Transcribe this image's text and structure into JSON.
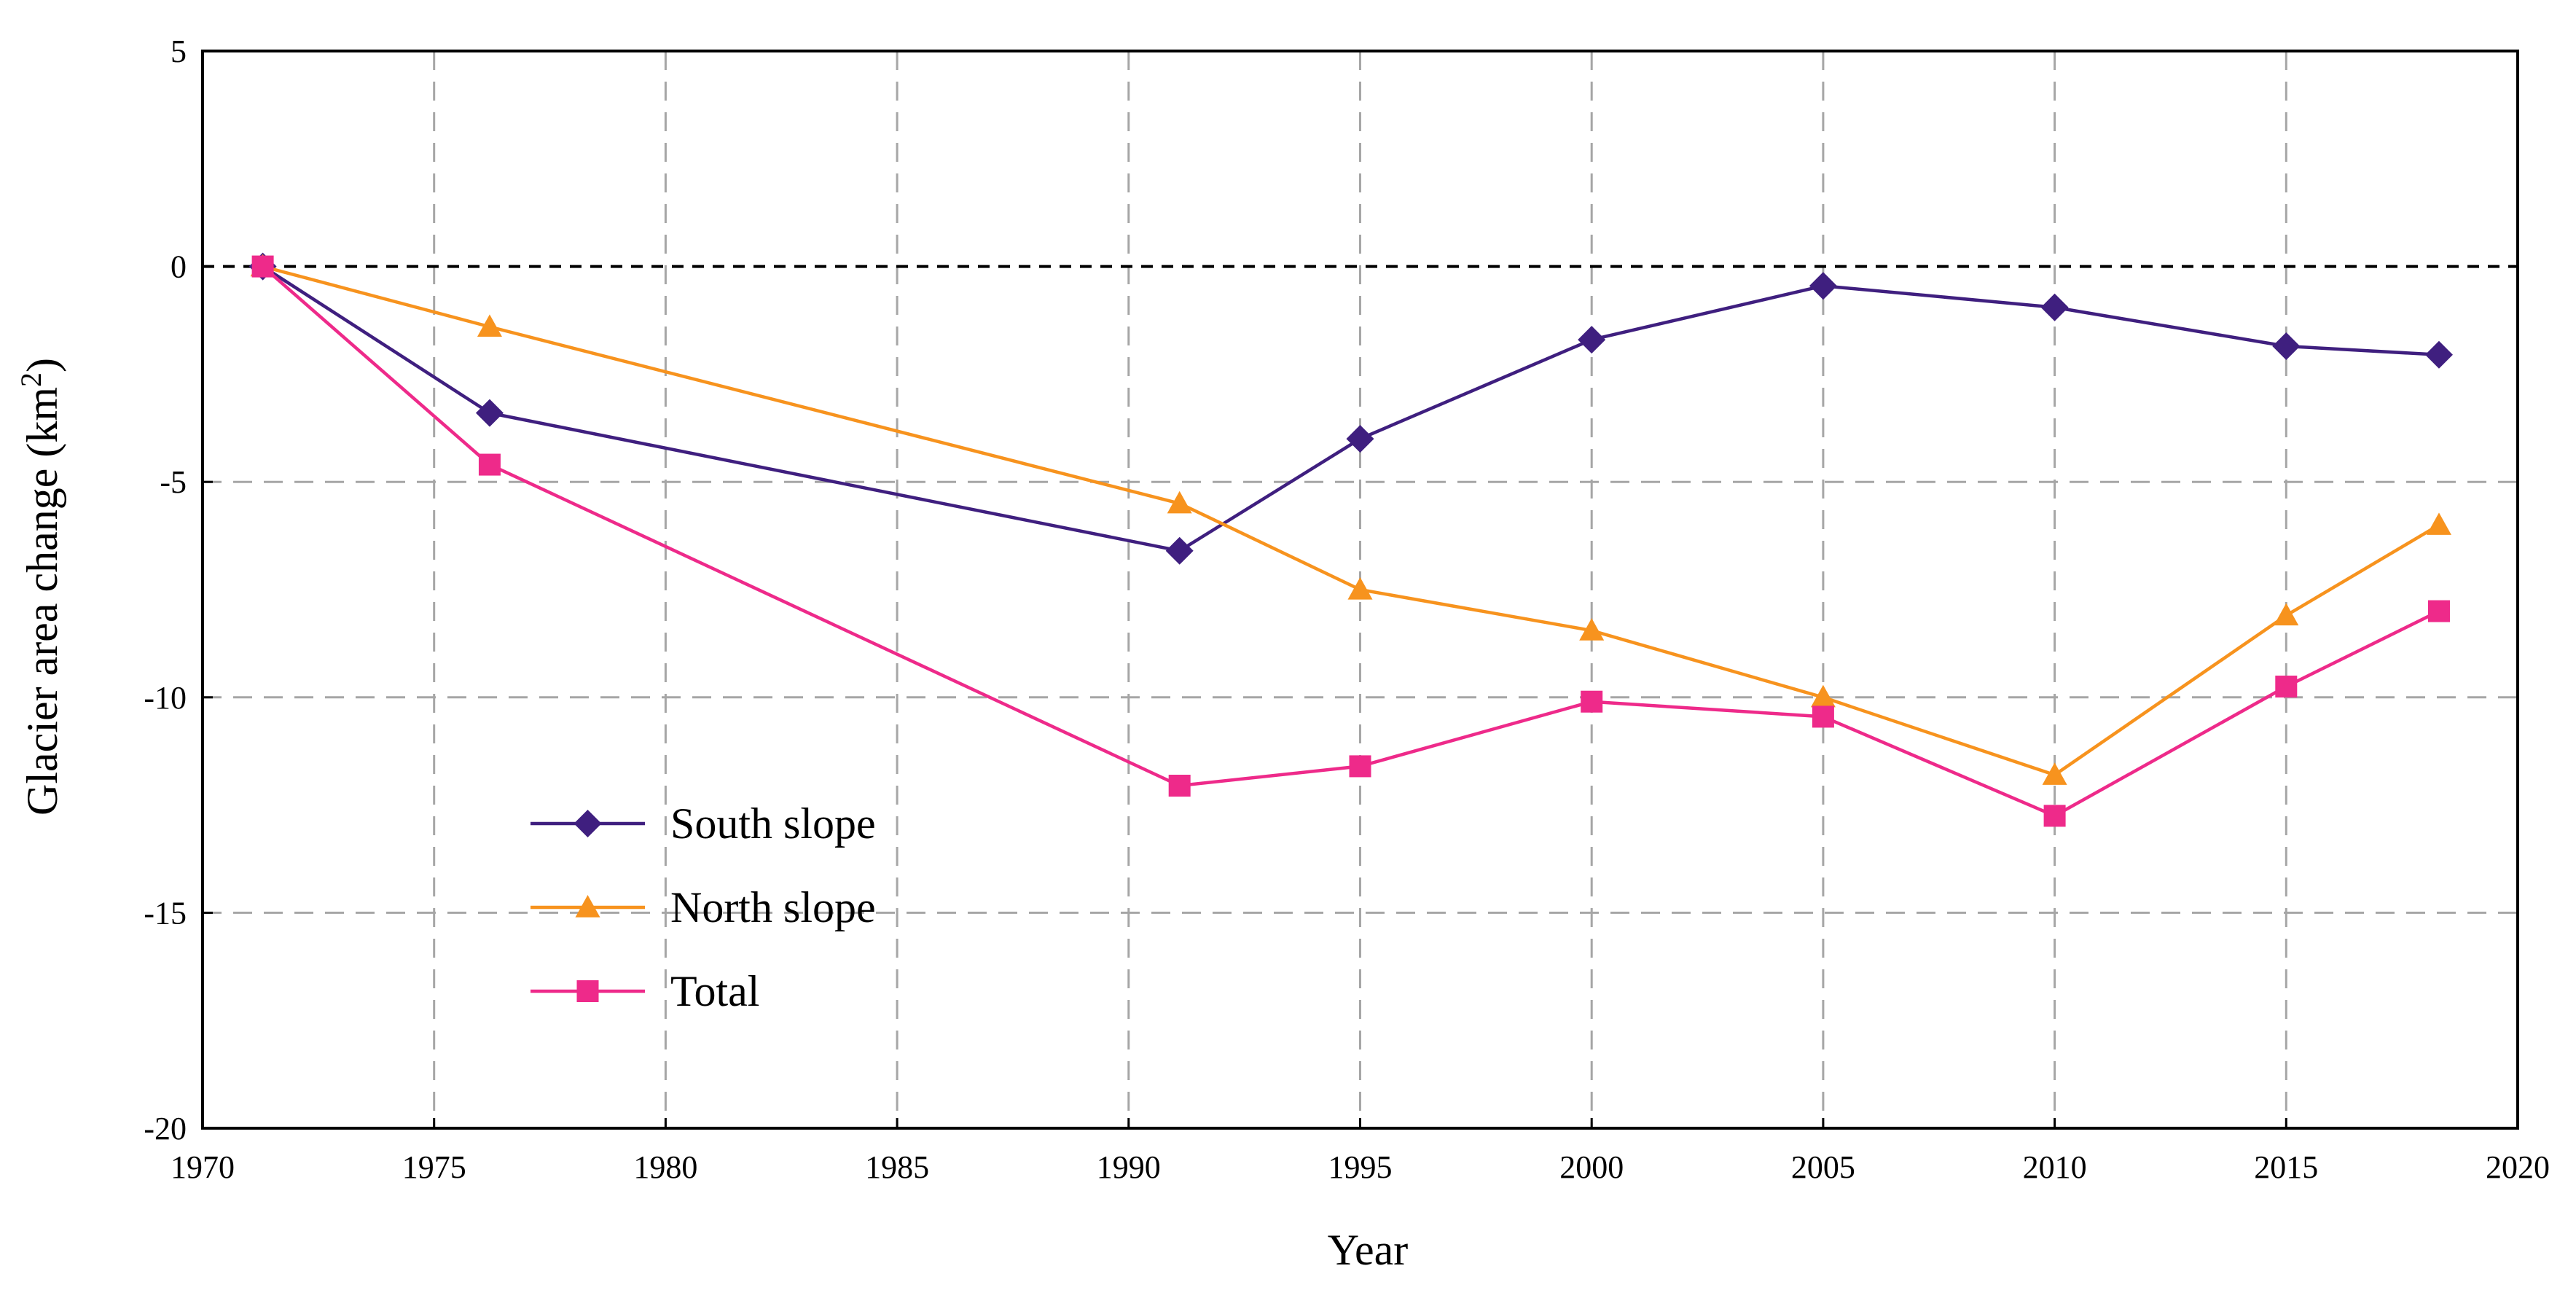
{
  "chart_data": {
    "type": "line",
    "title": "",
    "xlabel": "Year",
    "ylabel": "Glacier area change (km",
    "ylabel_superscript": "2",
    "ylabel_suffix": ")",
    "xlim": [
      1970,
      2020
    ],
    "ylim": [
      -20,
      5
    ],
    "xticks": [
      1970,
      1975,
      1980,
      1985,
      1990,
      1995,
      2000,
      2005,
      2010,
      2015,
      2020
    ],
    "yticks": [
      5,
      0,
      -5,
      -10,
      -15,
      -20
    ],
    "grid": true,
    "reference_line": 0,
    "legend_position": "lower-left",
    "series": [
      {
        "name": "South slope",
        "color": "#3f1f7f",
        "marker": "diamond",
        "x": [
          1971.3,
          1976.2,
          1991.1,
          1995,
          2000,
          2005,
          2010,
          2015,
          2018.3
        ],
        "y": [
          0,
          -3.4,
          -6.6,
          -4.0,
          -1.7,
          -0.45,
          -0.95,
          -1.85,
          -2.05
        ]
      },
      {
        "name": "North slope",
        "color": "#f7931e",
        "marker": "triangle",
        "x": [
          1971.3,
          1976.2,
          1991.1,
          1995,
          2000,
          2005,
          2010,
          2015,
          2018.3
        ],
        "y": [
          0,
          -1.4,
          -5.5,
          -7.5,
          -8.45,
          -10.0,
          -11.8,
          -8.1,
          -6.0
        ]
      },
      {
        "name": "Total",
        "color": "#ee2a8a",
        "marker": "square",
        "x": [
          1971.3,
          1976.2,
          1991.1,
          1995,
          2000,
          2005,
          2010,
          2015,
          2018.3
        ],
        "y": [
          0,
          -4.6,
          -12.05,
          -11.6,
          -10.1,
          -10.45,
          -12.75,
          -9.75,
          -8.0
        ]
      }
    ]
  }
}
